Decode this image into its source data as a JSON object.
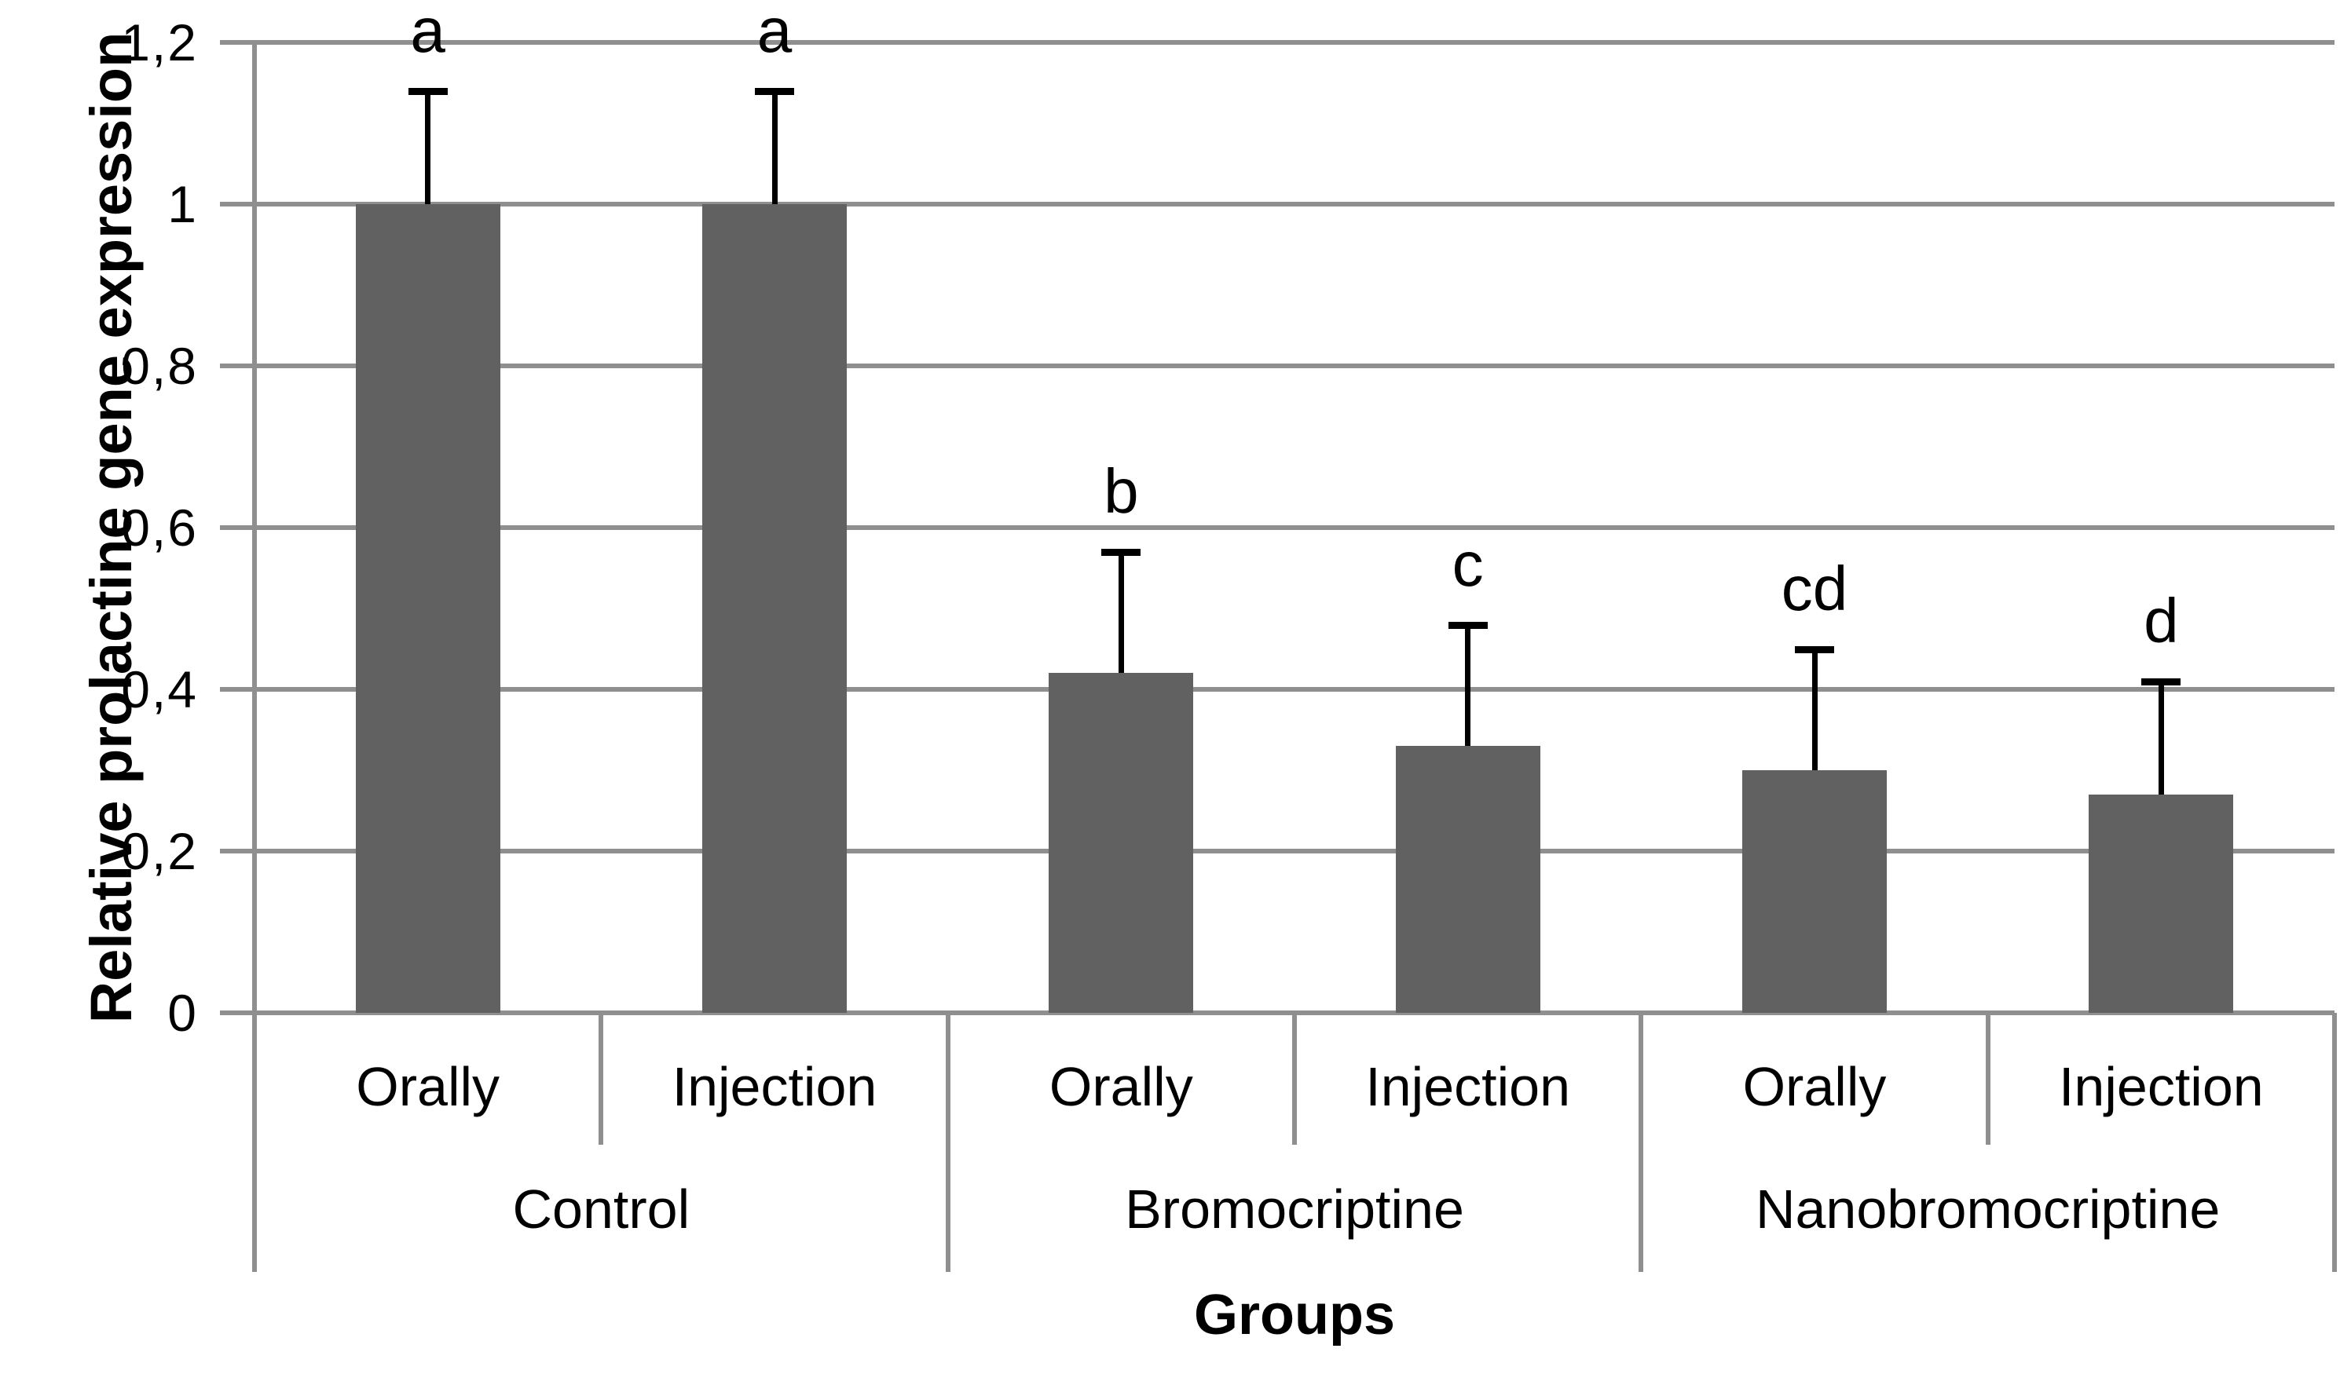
{
  "chart_data": {
    "type": "bar",
    "title": "",
    "ylabel": "Relative prolactine gene expression",
    "xlabel": "Groups",
    "ylim": [
      0,
      1.2
    ],
    "ytick_values": [
      0,
      0.2,
      0.4,
      0.6,
      0.8,
      1,
      1.2
    ],
    "ytick_labels": [
      "0",
      "0,2",
      "0,4",
      "0,6",
      "0,8",
      "1",
      "1,2"
    ],
    "decimal_separator": ",",
    "grid": true,
    "legend": "none",
    "error_bars": "upper-only",
    "categories": [
      "Orally",
      "Injection",
      "Orally",
      "Injection",
      "Orally",
      "Injection"
    ],
    "group_labels": [
      "Control",
      "Bromocriptine",
      "Nanobromocriptine"
    ],
    "series": [
      {
        "name": "Relative prolactine gene expression",
        "values": [
          1.0,
          1.0,
          0.42,
          0.33,
          0.3,
          0.27
        ],
        "error_top": [
          1.14,
          1.14,
          0.57,
          0.48,
          0.45,
          0.41
        ],
        "sig_letters": [
          "a",
          "a",
          "b",
          "c",
          "cd",
          "d"
        ]
      }
    ],
    "colors": {
      "bar": "#616161",
      "grid": "#8f8f8f",
      "axis": "#8f8f8f",
      "error": "#000000",
      "text": "#000000",
      "background": "#ffffff"
    }
  }
}
